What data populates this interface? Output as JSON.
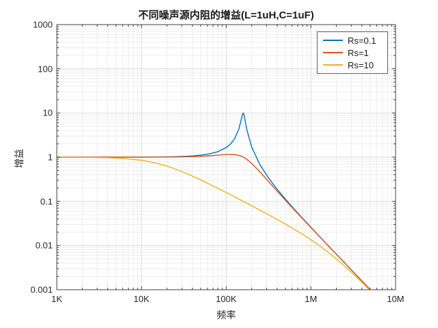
{
  "title": "不同噪声源内阻的增益(L=1uH,C=1uF)",
  "xlabel": "频率",
  "ylabel": "增益",
  "axis": {
    "x_ticks": [
      {
        "v": 1000,
        "label": "1K"
      },
      {
        "v": 10000,
        "label": "10K"
      },
      {
        "v": 100000,
        "label": "100K"
      },
      {
        "v": 1000000,
        "label": "1M"
      },
      {
        "v": 10000000,
        "label": "10M"
      }
    ],
    "y_ticks": [
      {
        "v": 1000,
        "label": "1000"
      },
      {
        "v": 100,
        "label": "100"
      },
      {
        "v": 10,
        "label": "10"
      },
      {
        "v": 1,
        "label": "1"
      },
      {
        "v": 0.1,
        "label": "0.1"
      },
      {
        "v": 0.01,
        "label": "0.01"
      },
      {
        "v": 0.001,
        "label": "0.001"
      }
    ]
  },
  "colors": {
    "grid_major": "#dbdbdb",
    "grid_minor": "#ededed",
    "axis_frame": "#3f3f3f",
    "series_blue": "#0072BD",
    "series_orange": "#D95319",
    "series_yellow": "#EDB120"
  },
  "legend": [
    {
      "label": "Rs=0.1",
      "color": "#0072BD"
    },
    {
      "label": "Rs=1",
      "color": "#D95319"
    },
    {
      "label": "Rs=10",
      "color": "#EDB120"
    }
  ],
  "chart_data": {
    "type": "line",
    "title": "不同噪声源内阻的增益(L=1uH,C=1uF)",
    "xlabel": "频率",
    "ylabel": "增益",
    "x_scale": "log",
    "y_scale": "log",
    "xlim": [
      1000,
      10000000
    ],
    "ylim": [
      0.001,
      1000
    ],
    "grid": "major+minor",
    "legend_position": "top-right",
    "frequencies_hz": [
      1000,
      1585,
      2512,
      3981,
      6310,
      10000,
      12589,
      15849,
      19953,
      25119,
      31623,
      39811,
      50119,
      63096,
      79433,
      100000,
      112540,
      125893,
      141254,
      150000,
      155000,
      159155,
      163000,
      168000,
      175000,
      199526,
      251189,
      316228,
      398107,
      501187,
      630957,
      794328,
      1000000,
      1258925,
      1584893,
      1995262,
      2511886,
      3162278,
      3981072,
      5000000
    ],
    "series": [
      {
        "name": "Rs=0.1",
        "color": "#0072BD",
        "gains": [
          1.0,
          1.0001,
          1.0002,
          1.0006,
          1.0016,
          1.004,
          1.0063,
          1.01,
          1.0159,
          1.0254,
          1.0409,
          1.0664,
          1.1094,
          1.1852,
          1.3288,
          1.6434,
          1.9803,
          2.6138,
          4.346,
          6.841,
          9.0758,
          10.0,
          8.8112,
          6.4293,
          4.234,
          1.7087,
          0.667,
          0.33845,
          0.19001,
          0.11208,
          0.067926,
          0.041816,
          0.025985,
          0.016241,
          0.010186,
          0.0064033,
          0.0040307,
          0.0025394,
          0.0016008,
          0.0010142
        ]
      },
      {
        "name": "Rs=1",
        "color": "#D95319",
        "gains": [
          1.0,
          1.0001,
          1.0001,
          1.0003,
          1.0008,
          1.002,
          1.0031,
          1.0049,
          1.0078,
          1.0124,
          1.0195,
          1.0307,
          1.0479,
          1.0736,
          1.1091,
          1.1463,
          1.1547,
          1.1427,
          1.0958,
          1.0537,
          1.0254,
          1.0,
          0.9753,
          0.94185,
          0.89346,
          0.72577,
          0.46059,
          0.28129,
          0.17177,
          0.10575,
          0.065612,
          0.040942,
          0.025649,
          0.01611,
          0.010134,
          0.006383,
          0.0040226,
          0.0025362,
          0.0015995,
          0.0010137
        ]
      },
      {
        "name": "Rs=10",
        "color": "#EDB120",
        "gains": [
          0.99807,
          0.99518,
          0.98801,
          0.97068,
          0.93088,
          0.84917,
          0.78733,
          0.71211,
          0.6274,
          0.53901,
          0.45312,
          0.37435,
          0.30531,
          0.24673,
          0.19813,
          0.15842,
          0.14107,
          0.12628,
          0.11264,
          0.1061,
          0.10268,
          0.1,
          0.09764,
          0.09473,
          0.090929,
          0.079684,
          0.06308,
          0.049784,
          0.039123,
          0.030554,
          0.023648,
          0.01807,
          0.013573,
          0.0099763,
          0.0071511,
          0.0049935,
          0.0034009,
          0.0022672,
          0.0014861,
          0.00096637
        ]
      }
    ]
  }
}
